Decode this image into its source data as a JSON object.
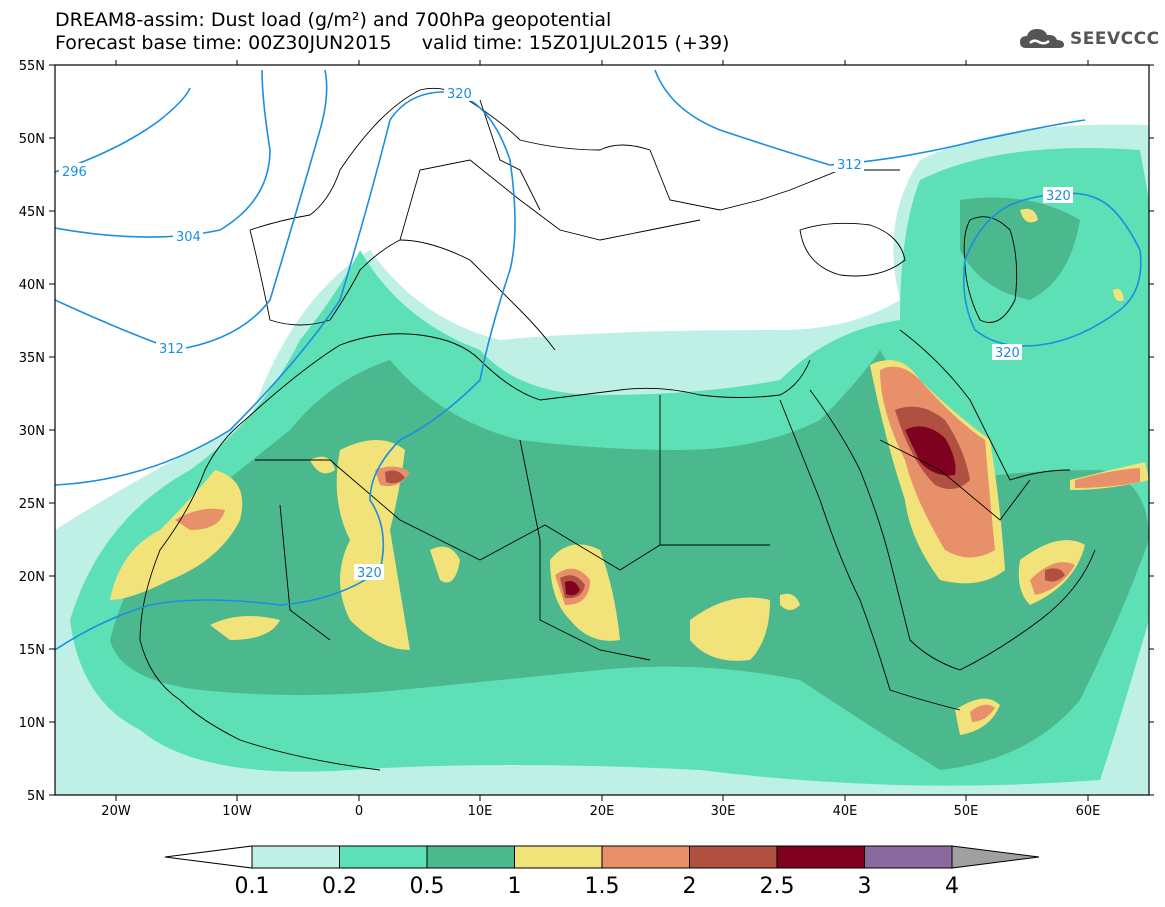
{
  "title": {
    "line1": "DREAM8-assim: Dust load (g/m²) and 700hPa geopotential",
    "line2": "Forecast base time: 00Z30JUN2015     valid time: 15Z01JUL2015 (+39)"
  },
  "logo": {
    "icon": "cloud-icon",
    "text": "SEEVCCC"
  },
  "axes": {
    "lon_ticks": [
      "20W",
      "10W",
      "0",
      "10E",
      "20E",
      "30E",
      "40E",
      "50E",
      "60E"
    ],
    "lat_ticks": [
      "55N",
      "50N",
      "45N",
      "40N",
      "35N",
      "30N",
      "25N",
      "20N",
      "15N",
      "10N",
      "5N"
    ]
  },
  "geopotential_labels": [
    "296",
    "304",
    "312",
    "320",
    "320",
    "312",
    "320",
    "320"
  ],
  "colorbar": {
    "levels": [
      "0.1",
      "0.2",
      "0.5",
      "1",
      "1.5",
      "2",
      "2.5",
      "3",
      "4"
    ],
    "colors": [
      "#bff0e6",
      "#5ee0b6",
      "#4cb88e",
      "#f2e27a",
      "#e8906a",
      "#b05040",
      "#800020",
      "#8a6a9e"
    ],
    "low_color": "#ffffff",
    "high_color": "#a0a0a0"
  },
  "colors": {
    "contour": "#1a8ee0",
    "border": "#000000"
  }
}
